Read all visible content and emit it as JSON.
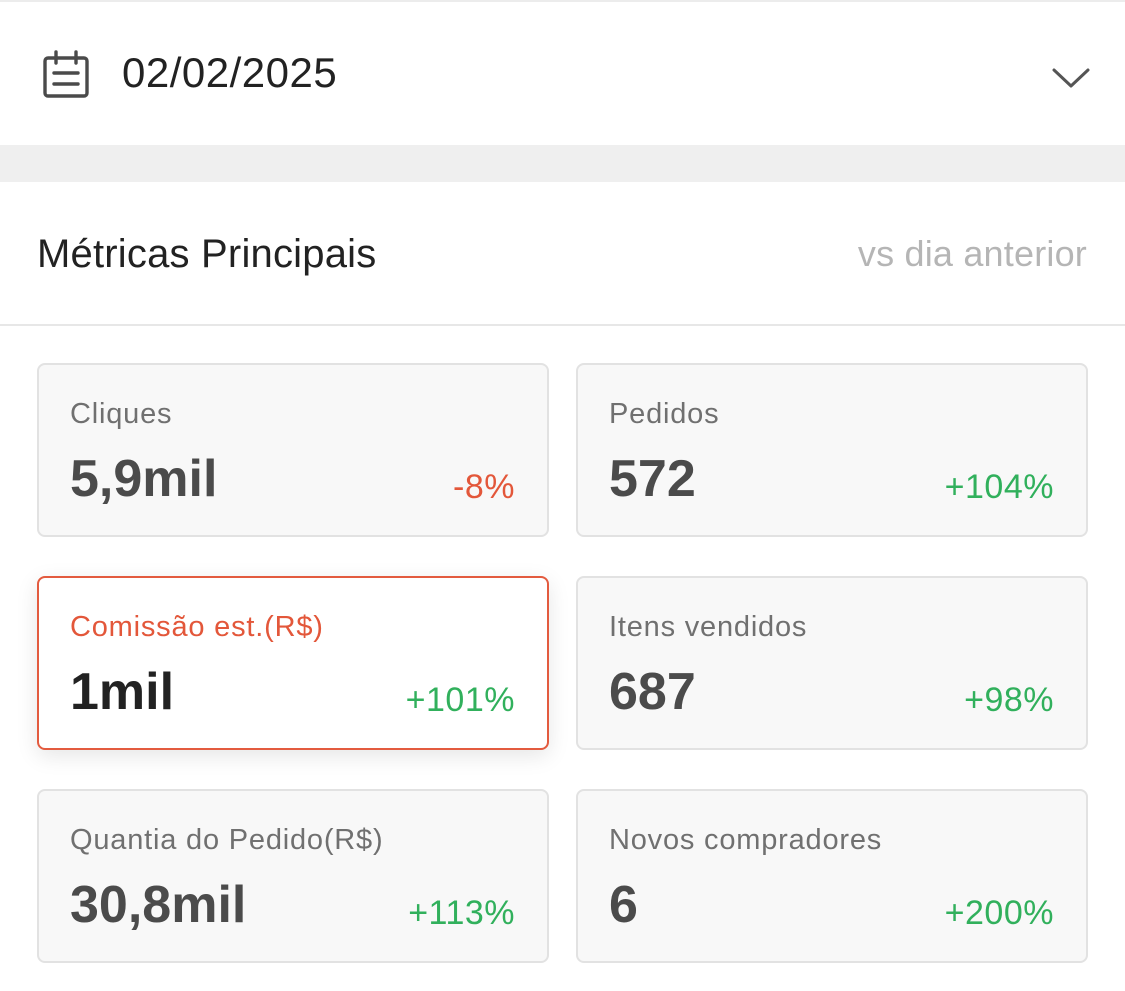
{
  "date_picker": {
    "value": "02/02/2025",
    "calendar_icon": "calendar-icon",
    "dropdown_icon": "chevron-down-icon"
  },
  "metrics": {
    "title": "Métricas Principais",
    "comparison": "vs dia anterior",
    "cards": [
      {
        "label": "Cliques",
        "value": "5,9mil",
        "change": "-8%",
        "change_color": "#e3573a",
        "selected": false
      },
      {
        "label": "Pedidos",
        "value": "572",
        "change": "+104%",
        "change_color": "#31b05c",
        "selected": false
      },
      {
        "label": "Comissão est.(R$)",
        "value": "1mil",
        "change": "+101%",
        "change_color": "#31b05c",
        "selected": true
      },
      {
        "label": "Itens vendidos",
        "value": "687",
        "change": "+98%",
        "change_color": "#31b05c",
        "selected": false
      },
      {
        "label": "Quantia do Pedido(R$)",
        "value": "30,8mil",
        "change": "+113%",
        "change_color": "#31b05c",
        "selected": false
      },
      {
        "label": "Novos compradores",
        "value": "6",
        "change": "+200%",
        "change_color": "#31b05c",
        "selected": false
      }
    ]
  },
  "colors": {
    "accent": "#e35b3f",
    "positive": "#31b05c",
    "negative": "#e3573a",
    "muted_text": "#b5b5b5"
  }
}
